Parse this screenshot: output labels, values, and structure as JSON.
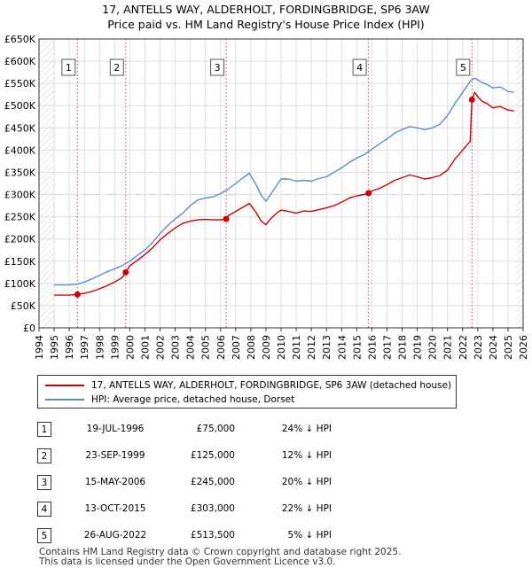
{
  "title_line1": "17, ANTELLS WAY, ALDERHOLT, FORDINGBRIDGE, SP6 3AW",
  "title_line2": "Price paid vs. HM Land Registry's House Price Index (HPI)",
  "chart_data": {
    "type": "line",
    "title": "17, ANTELLS WAY, ALDERHOLT, FORDINGBRIDGE, SP6 3AW — Price paid vs. HM Land Registry's House Price Index (HPI)",
    "xlabel": "",
    "ylabel": "",
    "xlim": [
      1994,
      2026
    ],
    "ylim": [
      0,
      650000
    ],
    "x_ticks": [
      1994,
      1995,
      1996,
      1997,
      1998,
      1999,
      2000,
      2001,
      2002,
      2003,
      2004,
      2005,
      2006,
      2007,
      2008,
      2009,
      2010,
      2011,
      2012,
      2013,
      2014,
      2015,
      2016,
      2017,
      2018,
      2019,
      2020,
      2021,
      2022,
      2023,
      2024,
      2025,
      2026
    ],
    "y_ticks": [
      0,
      50000,
      100000,
      150000,
      200000,
      250000,
      300000,
      350000,
      400000,
      450000,
      500000,
      550000,
      600000,
      650000
    ],
    "y_tick_labels": [
      "£0",
      "£50K",
      "£100K",
      "£150K",
      "£200K",
      "£250K",
      "£300K",
      "£350K",
      "£400K",
      "£450K",
      "£500K",
      "£550K",
      "£600K",
      "£650K"
    ],
    "grid": true,
    "hatch_regions": [
      [
        1994,
        1995
      ],
      [
        2025.5,
        2026
      ]
    ],
    "series": [
      {
        "name": "17, ANTELLS WAY, ALDERHOLT, FORDINGBRIDGE, SP6 3AW (detached house)",
        "color": "#cc0000",
        "x": [
          1995.0,
          1995.5,
          1996.0,
          1996.54,
          1997.0,
          1997.5,
          1998.0,
          1998.5,
          1999.0,
          1999.5,
          1999.73,
          2000.0,
          2000.5,
          2001.0,
          2001.5,
          2002.0,
          2002.5,
          2003.0,
          2003.5,
          2004.0,
          2004.5,
          2005.0,
          2005.5,
          2006.0,
          2006.37,
          2006.5,
          2007.0,
          2007.5,
          2007.9,
          2008.3,
          2008.7,
          2009.0,
          2009.3,
          2009.7,
          2010.0,
          2010.5,
          2011.0,
          2011.5,
          2012.0,
          2012.5,
          2013.0,
          2013.5,
          2014.0,
          2014.5,
          2015.0,
          2015.5,
          2015.78,
          2016.0,
          2016.5,
          2017.0,
          2017.5,
          2018.0,
          2018.5,
          2019.0,
          2019.5,
          2020.0,
          2020.5,
          2021.0,
          2021.5,
          2022.0,
          2022.5,
          2022.62,
          2022.8,
          2023.0,
          2023.3,
          2023.6,
          2024.0,
          2024.5,
          2025.0,
          2025.4
        ],
        "values": [
          74000,
          73500,
          74000,
          75000,
          78000,
          82000,
          88000,
          95000,
          103000,
          113000,
          125000,
          140000,
          152000,
          165000,
          180000,
          198000,
          212000,
          225000,
          235000,
          240000,
          243000,
          244000,
          243000,
          243000,
          245000,
          252000,
          262000,
          272000,
          280000,
          262000,
          240000,
          232000,
          245000,
          258000,
          265000,
          262000,
          258000,
          263000,
          262000,
          266000,
          270000,
          275000,
          283000,
          292000,
          297000,
          300000,
          303000,
          308000,
          314000,
          322000,
          332000,
          338000,
          344000,
          340000,
          335000,
          338000,
          343000,
          355000,
          380000,
          400000,
          420000,
          513500,
          530000,
          520000,
          510000,
          505000,
          495000,
          498000,
          490000,
          488000
        ]
      },
      {
        "name": "HPI: Average price, detached house, Dorset",
        "color": "#5b8cc8",
        "x": [
          1995.0,
          1995.5,
          1996.0,
          1996.5,
          1997.0,
          1997.5,
          1998.0,
          1998.5,
          1999.0,
          1999.5,
          2000.0,
          2000.5,
          2001.0,
          2001.5,
          2002.0,
          2002.5,
          2003.0,
          2003.5,
          2004.0,
          2004.5,
          2005.0,
          2005.5,
          2006.0,
          2006.5,
          2007.0,
          2007.5,
          2007.9,
          2008.3,
          2008.7,
          2009.0,
          2009.3,
          2009.7,
          2010.0,
          2010.5,
          2011.0,
          2011.5,
          2012.0,
          2012.5,
          2013.0,
          2013.5,
          2014.0,
          2014.5,
          2015.0,
          2015.5,
          2016.0,
          2016.5,
          2017.0,
          2017.5,
          2018.0,
          2018.5,
          2019.0,
          2019.5,
          2020.0,
          2020.5,
          2021.0,
          2021.5,
          2022.0,
          2022.5,
          2022.8,
          2023.0,
          2023.3,
          2023.6,
          2024.0,
          2024.5,
          2025.0,
          2025.4
        ],
        "values": [
          97000,
          96500,
          97000,
          98000,
          103000,
          110000,
          118000,
          126000,
          133000,
          140000,
          150000,
          163000,
          175000,
          192000,
          212000,
          230000,
          245000,
          258000,
          275000,
          288000,
          292000,
          295000,
          302000,
          312000,
          325000,
          338000,
          348000,
          325000,
          298000,
          285000,
          300000,
          320000,
          335000,
          335000,
          330000,
          332000,
          330000,
          336000,
          340000,
          350000,
          360000,
          372000,
          382000,
          390000,
          402000,
          414000,
          425000,
          438000,
          446000,
          453000,
          450000,
          446000,
          450000,
          458000,
          478000,
          505000,
          530000,
          555000,
          562000,
          558000,
          552000,
          548000,
          540000,
          542000,
          532000,
          530000
        ]
      }
    ],
    "sales": [
      {
        "label": "1",
        "x": 1996.54,
        "value": 75000
      },
      {
        "label": "2",
        "x": 1999.73,
        "value": 125000
      },
      {
        "label": "3",
        "x": 2006.37,
        "value": 245000
      },
      {
        "label": "4",
        "x": 2015.78,
        "value": 303000
      },
      {
        "label": "5",
        "x": 2022.62,
        "value": 513500
      }
    ]
  },
  "legend": {
    "property_label": "17, ANTELLS WAY, ALDERHOLT, FORDINGBRIDGE, SP6 3AW (detached house)",
    "hpi_label": "HPI: Average price, detached house, Dorset",
    "property_color": "#cc0000",
    "hpi_color": "#5b8cc8"
  },
  "sales_table": [
    {
      "num": "1",
      "date": "19-JUL-1996",
      "price": "£75,000",
      "pct": "24% ↓ HPI"
    },
    {
      "num": "2",
      "date": "23-SEP-1999",
      "price": "£125,000",
      "pct": "12% ↓ HPI"
    },
    {
      "num": "3",
      "date": "15-MAY-2006",
      "price": "£245,000",
      "pct": "20% ↓ HPI"
    },
    {
      "num": "4",
      "date": "13-OCT-2015",
      "price": "£303,000",
      "pct": "22% ↓ HPI"
    },
    {
      "num": "5",
      "date": "26-AUG-2022",
      "price": "£513,500",
      "pct": "5% ↓ HPI"
    }
  ],
  "footer": {
    "line1": "Contains HM Land Registry data © Crown copyright and database right 2025.",
    "line2": "This data is licensed under the Open Government Licence v3.0."
  }
}
